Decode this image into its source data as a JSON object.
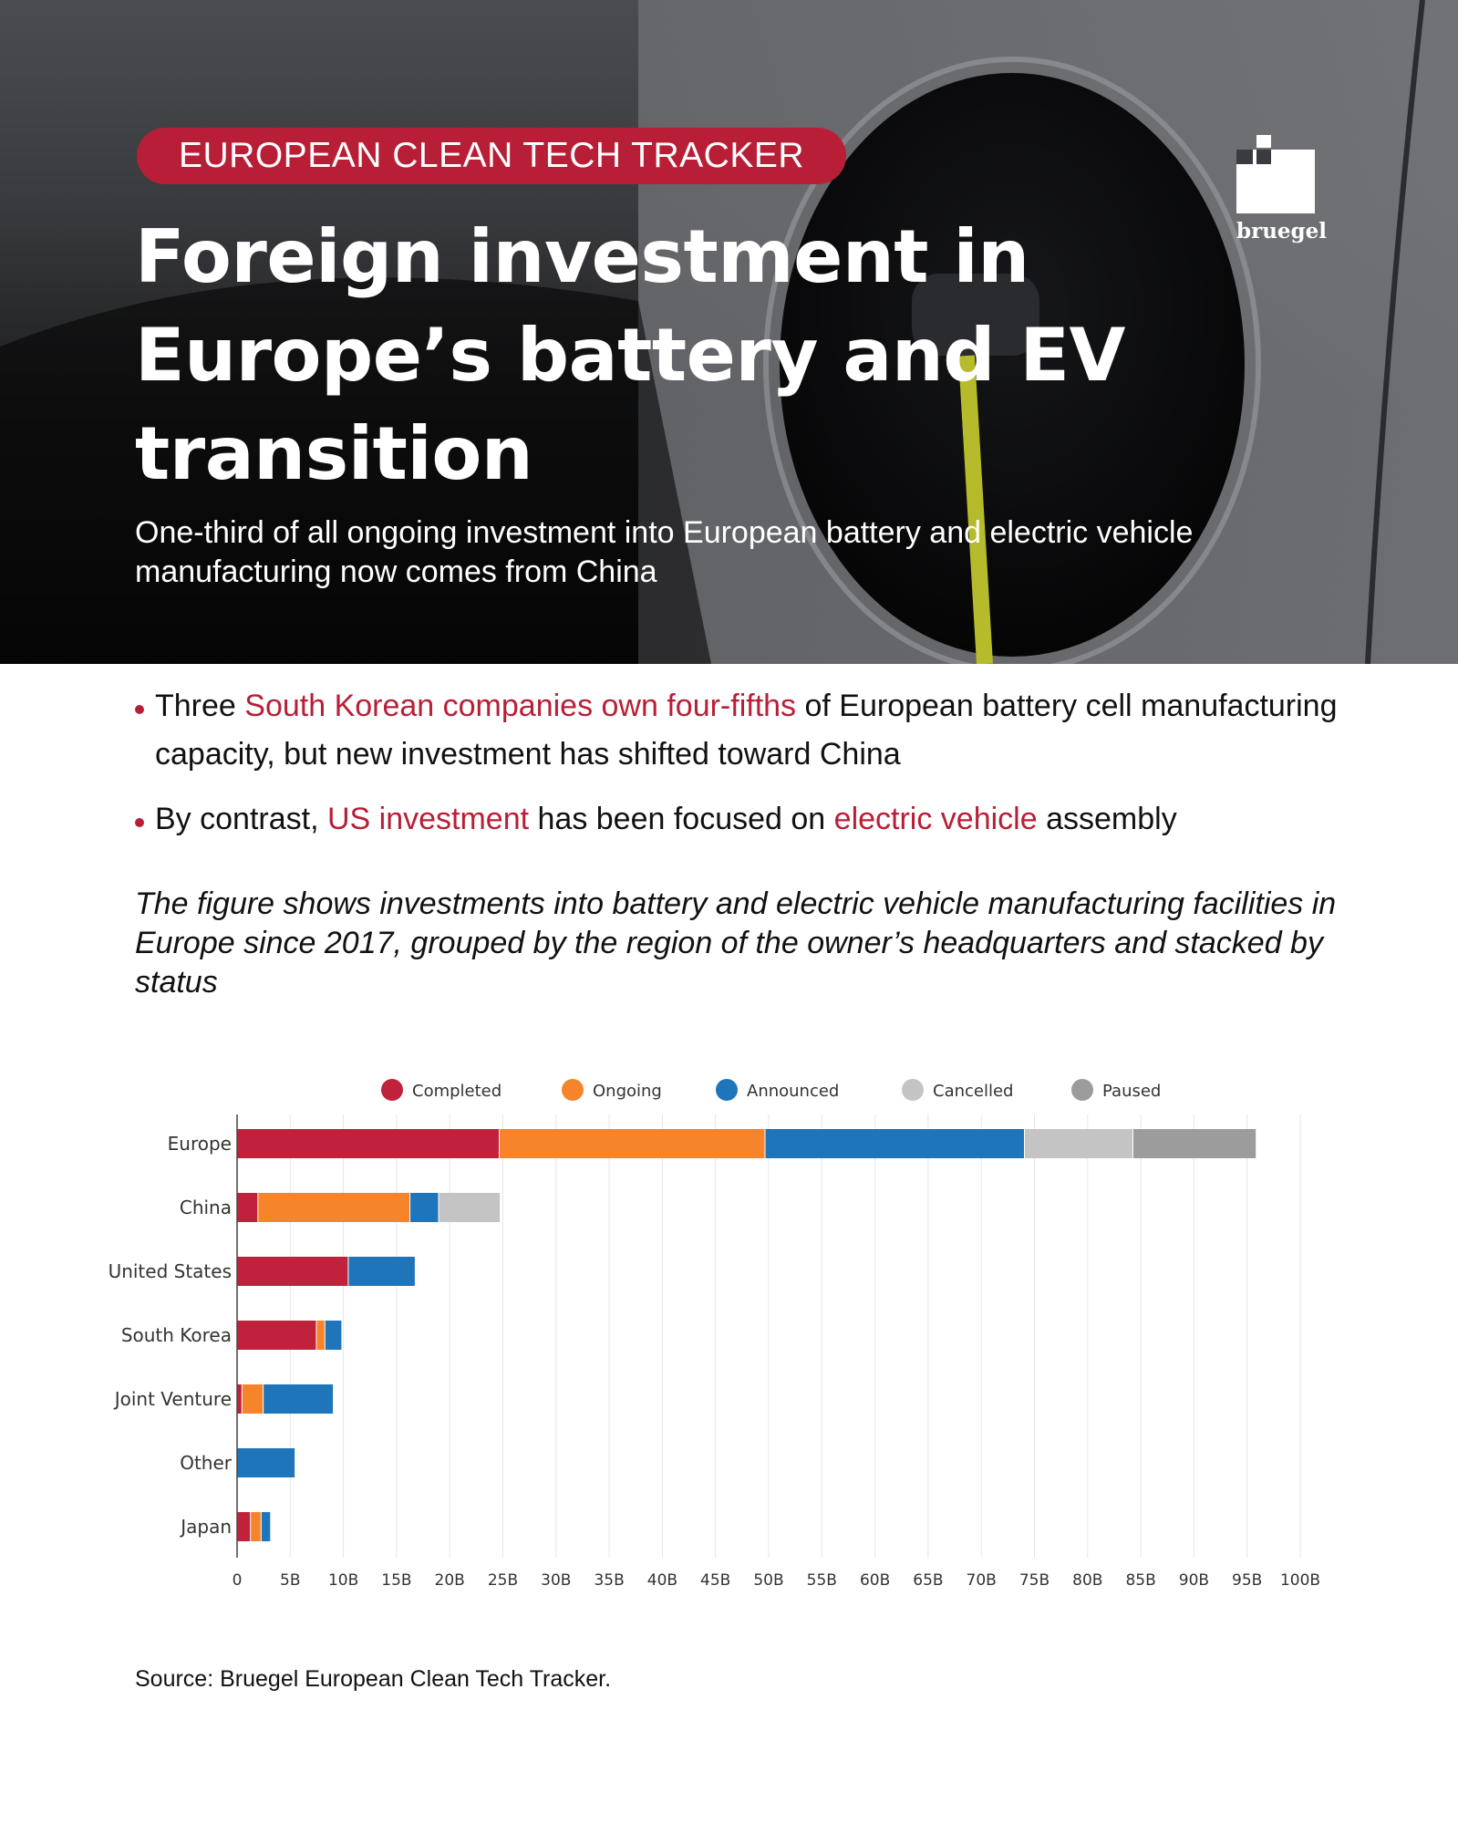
{
  "header": {
    "kicker": "EUROPEAN CLEAN TECH TRACKER",
    "title": "Foreign investment in Europe’s battery and EV transition",
    "subtitle": "One-third of all ongoing investment into European battery and electric vehicle manufacturing now comes from China",
    "logo_text": "bruegel"
  },
  "bullets": [
    {
      "parts": [
        {
          "text": "Three ",
          "highlight": false
        },
        {
          "text": "South Korean companies own four-fifths",
          "highlight": true
        },
        {
          "text": " of European battery cell manufacturing capacity, but new investment has shifted toward China",
          "highlight": false
        }
      ]
    },
    {
      "parts": [
        {
          "text": "By contrast, ",
          "highlight": false
        },
        {
          "text": "US investment",
          "highlight": true
        },
        {
          "text": " has been focused on ",
          "highlight": false
        },
        {
          "text": "electric vehicle",
          "highlight": true
        },
        {
          "text": " assembly",
          "highlight": false
        }
      ]
    }
  ],
  "caption": "The figure shows investments into battery and electric vehicle manufacturing facilities in Europe since 2017, grouped by the region of the owner’s headquarters and stacked by status",
  "source": "Source: Bruegel European Clean Tech Tracker.",
  "colors": {
    "accent": "#b81f36",
    "completed": "#c0223b",
    "ongoing": "#f5842a",
    "announced": "#1f75b9",
    "cancelled": "#c4c4c4",
    "paused": "#9c9c9c"
  },
  "chart_data": {
    "type": "bar",
    "orientation": "horizontal",
    "stacked": true,
    "categories": [
      "Europe",
      "China",
      "United States",
      "South Korea",
      "Joint Venture",
      "Other",
      "Japan"
    ],
    "series": [
      {
        "name": "Completed",
        "color": "#c0223b",
        "values": [
          24.7,
          2.0,
          10.5,
          7.5,
          0.5,
          0.0,
          1.3
        ]
      },
      {
        "name": "Ongoing",
        "color": "#f5842a",
        "values": [
          25.0,
          14.3,
          0.0,
          0.8,
          2.0,
          0.0,
          1.0
        ]
      },
      {
        "name": "Announced",
        "color": "#1f75b9",
        "values": [
          24.4,
          2.7,
          6.3,
          1.6,
          6.6,
          5.5,
          0.9
        ]
      },
      {
        "name": "Cancelled",
        "color": "#c4c4c4",
        "values": [
          10.2,
          5.8,
          0.0,
          0.0,
          0.0,
          0.0,
          0.0
        ]
      },
      {
        "name": "Paused",
        "color": "#9c9c9c",
        "values": [
          11.6,
          0.0,
          0.0,
          0.0,
          0.0,
          0.0,
          0.0
        ]
      }
    ],
    "xlim": [
      0,
      100
    ],
    "xticks": [
      0,
      5,
      10,
      15,
      20,
      25,
      30,
      35,
      40,
      45,
      50,
      55,
      60,
      65,
      70,
      75,
      80,
      85,
      90,
      95,
      100
    ],
    "xtick_labels": [
      "0",
      "5B",
      "10B",
      "15B",
      "20B",
      "25B",
      "30B",
      "35B",
      "40B",
      "45B",
      "50B",
      "55B",
      "60B",
      "65B",
      "70B",
      "75B",
      "80B",
      "85B",
      "90B",
      "95B",
      "100B"
    ],
    "grid": true,
    "legend_position": "top"
  }
}
